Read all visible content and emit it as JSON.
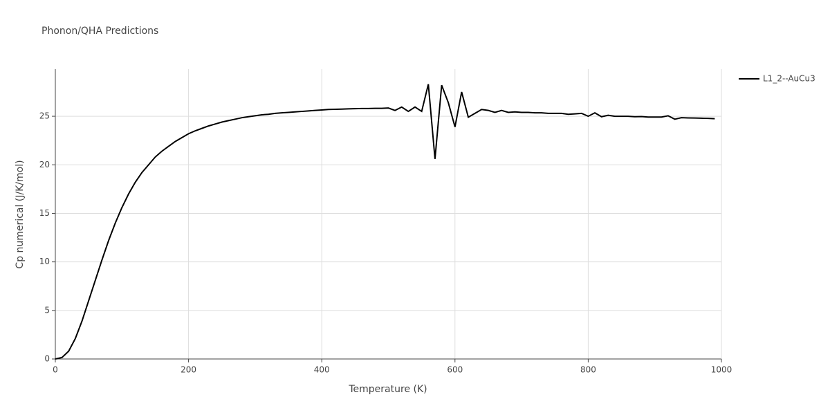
{
  "chart_data": {
    "type": "line",
    "title": "Phonon/QHA Predictions",
    "x_label": "Temperature (K)",
    "y_label": "Cp numerical (J/K/mol)",
    "x": [
      0,
      10,
      20,
      30,
      40,
      50,
      60,
      70,
      80,
      90,
      100,
      110,
      120,
      130,
      140,
      150,
      160,
      170,
      180,
      190,
      200,
      210,
      220,
      230,
      240,
      250,
      260,
      270,
      280,
      290,
      300,
      310,
      320,
      330,
      340,
      350,
      360,
      370,
      380,
      390,
      400,
      410,
      420,
      430,
      440,
      450,
      460,
      470,
      480,
      490,
      500,
      510,
      520,
      530,
      540,
      550,
      560,
      570,
      580,
      590,
      600,
      610,
      620,
      630,
      640,
      650,
      660,
      670,
      680,
      690,
      700,
      710,
      720,
      730,
      740,
      750,
      760,
      770,
      780,
      790,
      800,
      810,
      820,
      830,
      840,
      850,
      860,
      870,
      880,
      890,
      900,
      910,
      920,
      930,
      940,
      950,
      960,
      970,
      980,
      990
    ],
    "series": [
      {
        "name": "L1_2--AuCu3",
        "color": "#000000",
        "values": [
          0,
          0.15,
          0.8,
          2.1,
          3.9,
          6.0,
          8.1,
          10.2,
          12.2,
          14.0,
          15.6,
          17.0,
          18.2,
          19.2,
          20.0,
          20.8,
          21.4,
          21.9,
          22.4,
          22.8,
          23.2,
          23.5,
          23.75,
          24.0,
          24.2,
          24.4,
          24.55,
          24.7,
          24.85,
          24.95,
          25.05,
          25.15,
          25.2,
          25.3,
          25.35,
          25.4,
          25.45,
          25.5,
          25.55,
          25.6,
          25.65,
          25.7,
          25.72,
          25.74,
          25.76,
          25.78,
          25.8,
          25.8,
          25.82,
          25.82,
          25.85,
          25.6,
          25.95,
          25.5,
          25.95,
          25.5,
          28.3,
          20.6,
          28.2,
          26.4,
          23.9,
          27.5,
          24.9,
          25.3,
          25.7,
          25.6,
          25.4,
          25.6,
          25.4,
          25.45,
          25.4,
          25.4,
          25.35,
          25.35,
          25.3,
          25.3,
          25.3,
          25.2,
          25.25,
          25.3,
          25.0,
          25.35,
          24.95,
          25.1,
          25.0,
          25.0,
          25.0,
          24.95,
          24.97,
          24.92,
          24.92,
          24.92,
          25.05,
          24.7,
          24.85,
          24.83,
          24.82,
          24.8,
          24.78,
          24.75
        ]
      }
    ],
    "xlim": [
      0,
      1000
    ],
    "ylim": [
      0,
      29.85
    ],
    "xticks": [
      0,
      200,
      400,
      600,
      800,
      1000
    ],
    "yticks": [
      0,
      5,
      10,
      15,
      20,
      25
    ],
    "grid": true,
    "legend": "right"
  }
}
